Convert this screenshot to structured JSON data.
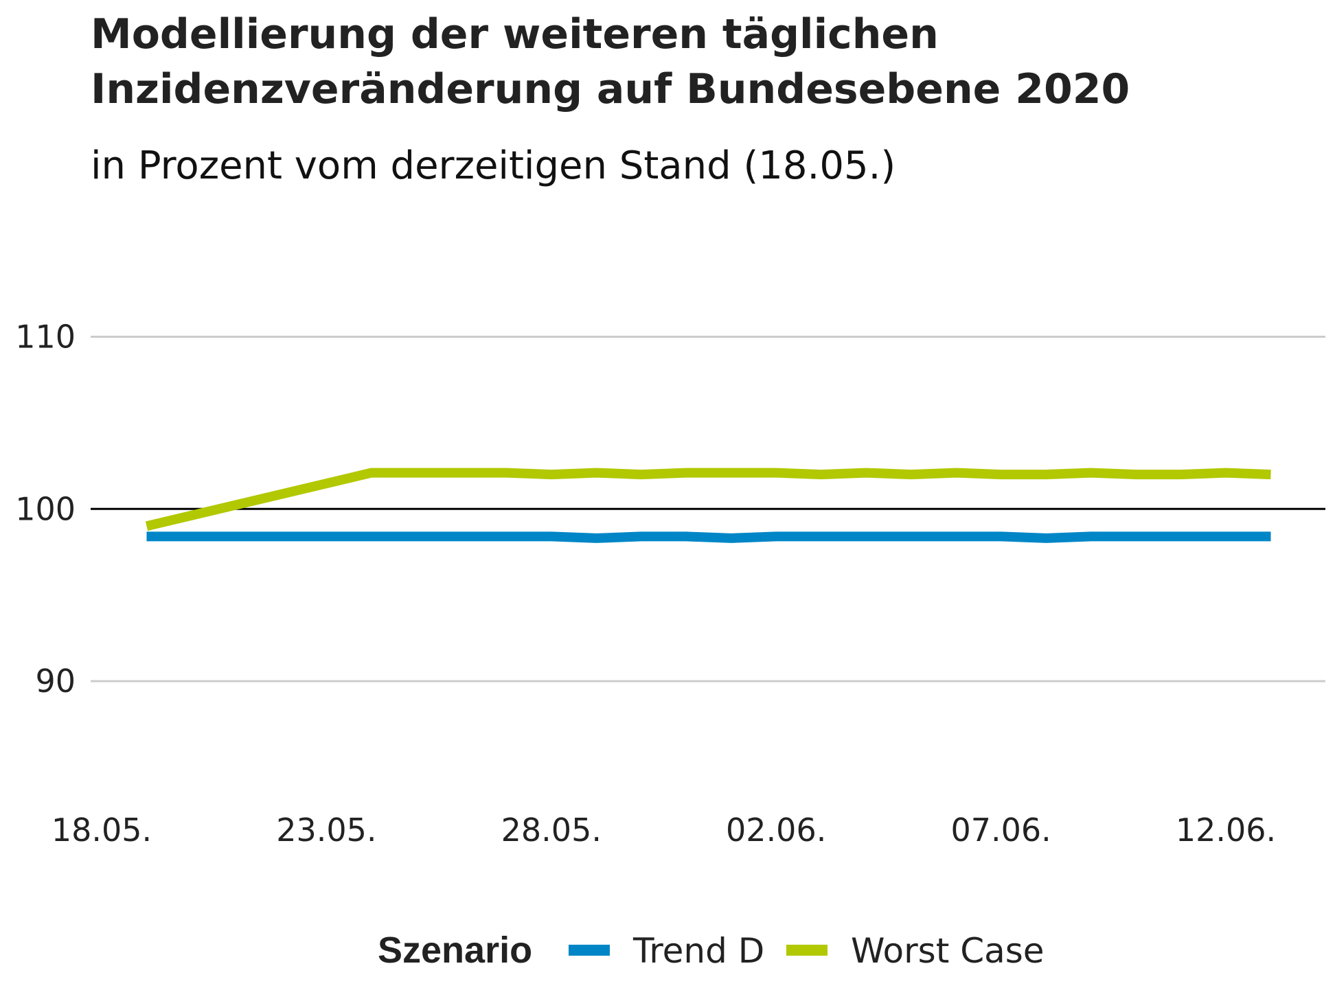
{
  "chart_data": {
    "type": "line",
    "title_line1": "Modellierung der weiteren täglichen",
    "title_line2": "Inzidenzveränderung auf Bundesebene 2020",
    "subtitle": "in Prozent vom derzeitigen Stand (18.05.)",
    "x_tick_labels": [
      "18.05.",
      "23.05.",
      "28.05.",
      "02.06.",
      "07.06.",
      "12.06."
    ],
    "y_tick_labels": [
      "90",
      "100",
      "110"
    ],
    "y_ticks": [
      90,
      100,
      110
    ],
    "ylim": [
      84.5,
      116
    ],
    "reference_line": 100,
    "grid": true,
    "legend": {
      "title": "Szenario",
      "placement": "bottom"
    },
    "x": [
      "19.05.",
      "24.05.",
      "25.05.",
      "26.05.",
      "27.05.",
      "28.05.",
      "29.05.",
      "30.05.",
      "31.05.",
      "01.06.",
      "02.06.",
      "03.06.",
      "04.06.",
      "05.06.",
      "06.06.",
      "07.06.",
      "08.06.",
      "09.06.",
      "10.06.",
      "11.06.",
      "12.06.",
      "13.06."
    ],
    "series": [
      {
        "name": "Trend D",
        "color": "#0086c7",
        "values": [
          98.4,
          98.4,
          98.4,
          98.4,
          98.4,
          98.4,
          98.3,
          98.4,
          98.4,
          98.3,
          98.4,
          98.4,
          98.4,
          98.4,
          98.4,
          98.4,
          98.3,
          98.4,
          98.4,
          98.4,
          98.4,
          98.4
        ]
      },
      {
        "name": "Worst Case",
        "color": "#b2c800",
        "values": [
          99.0,
          102.1,
          102.1,
          102.1,
          102.1,
          102.0,
          102.1,
          102.0,
          102.1,
          102.1,
          102.1,
          102.0,
          102.1,
          102.0,
          102.1,
          102.0,
          102.0,
          102.1,
          102.0,
          102.0,
          102.1,
          102.0
        ]
      }
    ]
  }
}
